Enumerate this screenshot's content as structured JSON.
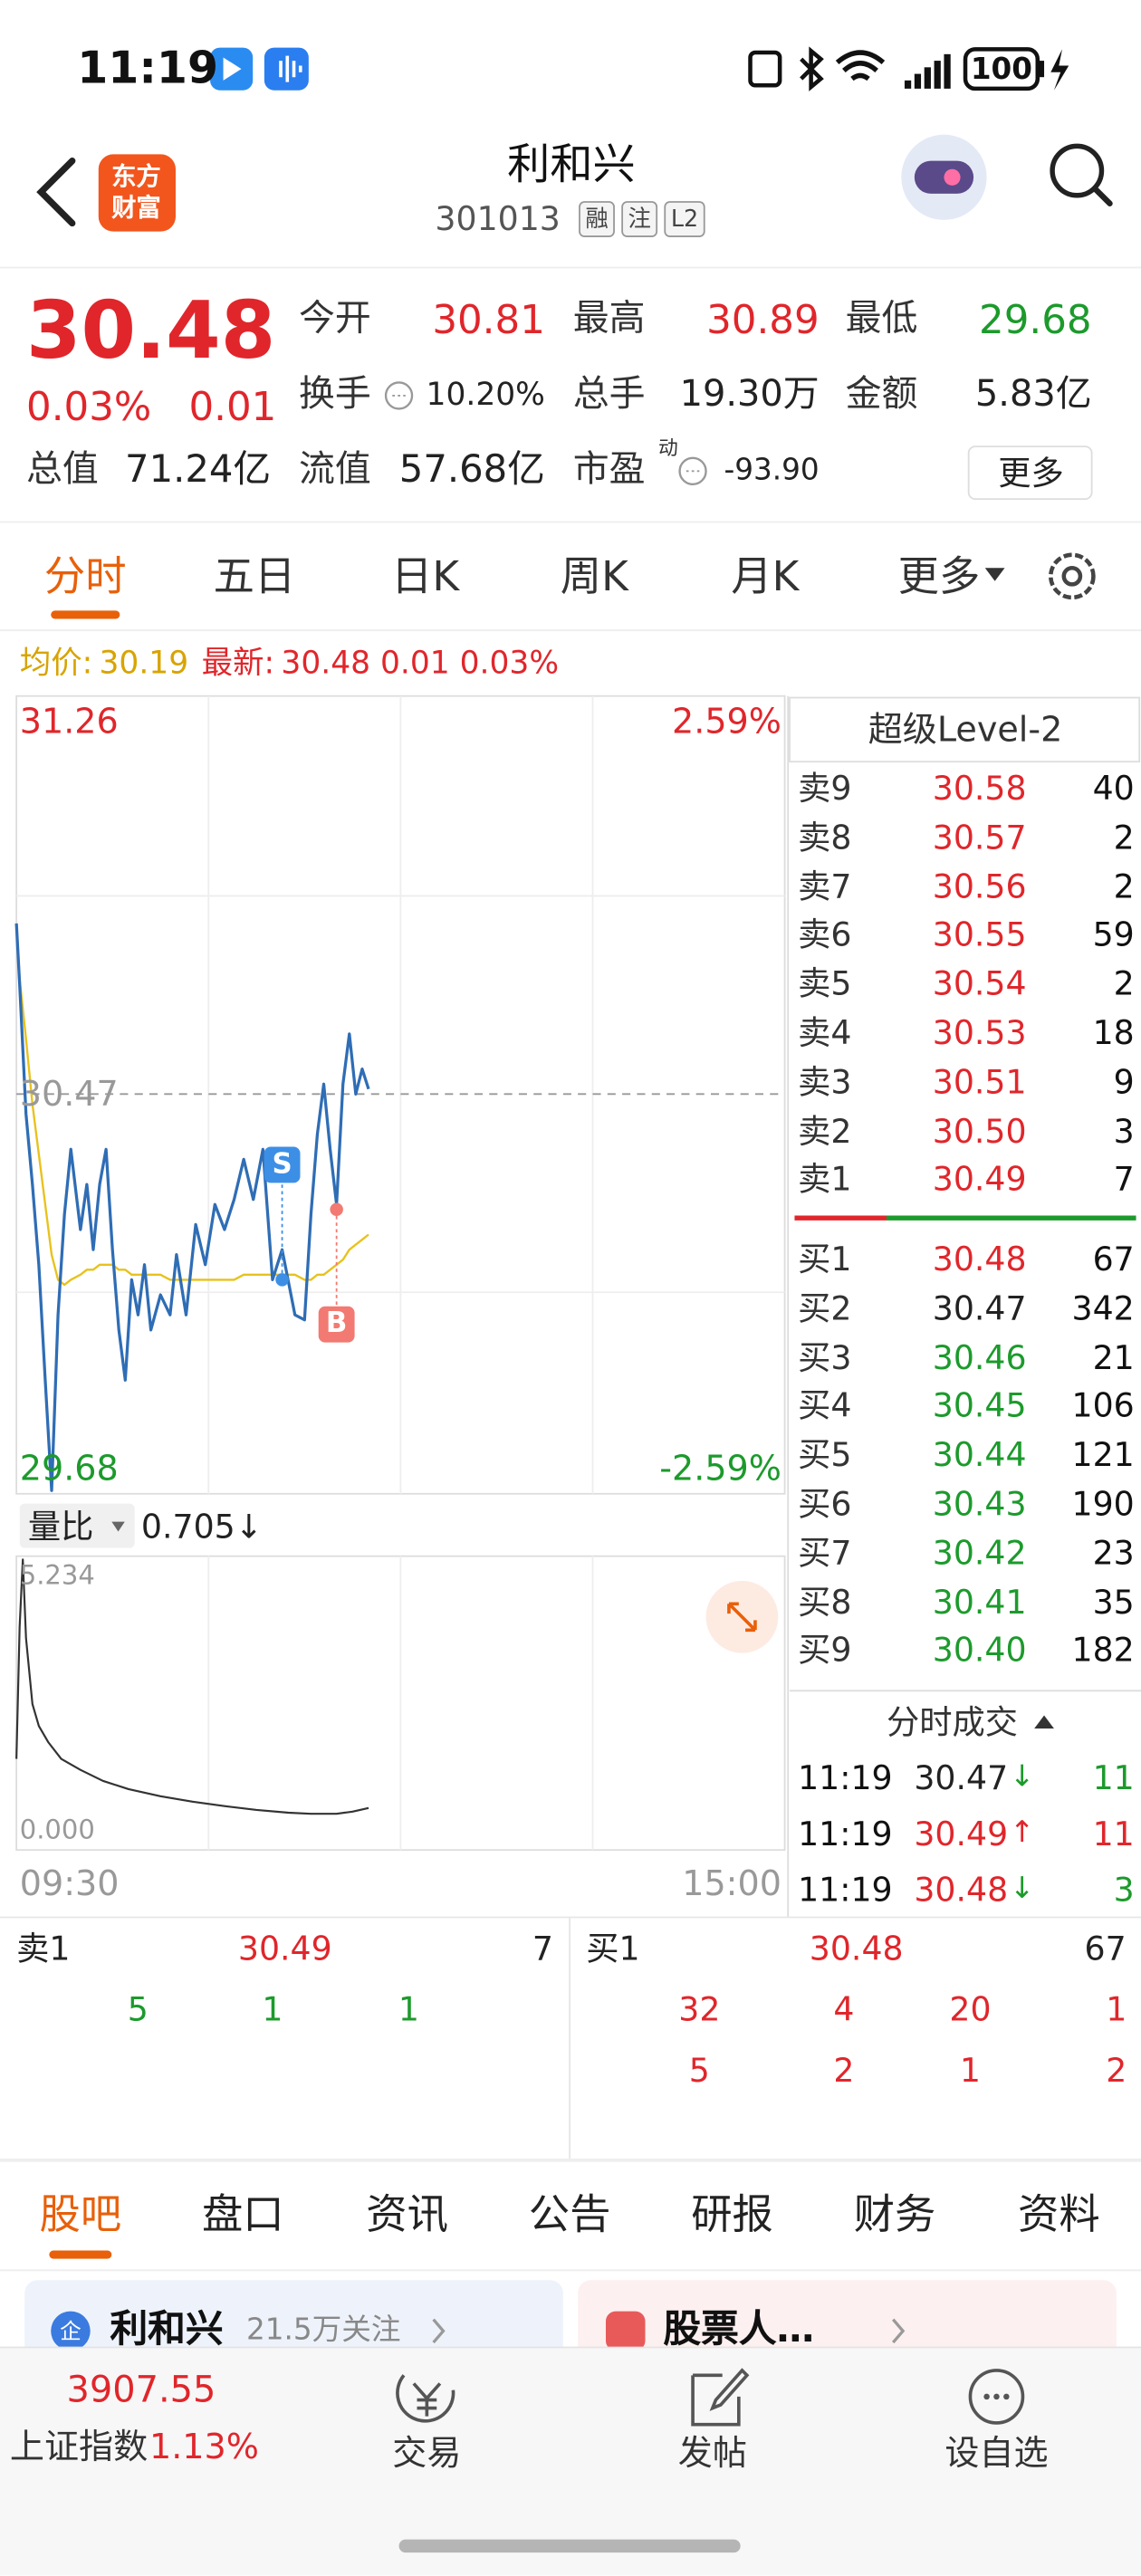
{
  "status_bar": {
    "time": "11:19",
    "battery": "100"
  },
  "header": {
    "logo_lines": [
      "东方",
      "财富"
    ],
    "title": "利和兴",
    "code": "301013",
    "badges": [
      "融",
      "注",
      "L2"
    ]
  },
  "quote": {
    "price": "30.48",
    "change_pct": "0.03%",
    "change": "0.01",
    "more": "更多",
    "fields": [
      {
        "label": "今开",
        "value": "30.81",
        "color": "#e0262b"
      },
      {
        "label": "最高",
        "value": "30.89",
        "color": "#e0262b"
      },
      {
        "label": "最低",
        "value": "29.68",
        "color": "#1c9a2c"
      },
      {
        "label": "换手",
        "value": "10.20%",
        "color": "#222222"
      },
      {
        "label": "总手",
        "value": "19.30万",
        "color": "#222222"
      },
      {
        "label": "金额",
        "value": "5.83亿",
        "color": "#222222"
      },
      {
        "label": "总值",
        "value": "71.24亿",
        "color": "#222222"
      },
      {
        "label": "流值",
        "value": "57.68亿",
        "color": "#222222"
      },
      {
        "label": "市盈",
        "superscript": "动",
        "value": "-93.90",
        "color": "#222222"
      }
    ]
  },
  "chart_tabs": {
    "items": [
      "分时",
      "五日",
      "日K",
      "周K",
      "月K",
      "更多"
    ],
    "active": 0
  },
  "chart_data": [
    {
      "type": "line",
      "x": [
        0,
        1,
        3,
        5,
        7,
        9,
        11,
        13,
        15,
        17,
        20,
        22,
        24,
        26,
        28,
        30,
        32,
        34,
        36,
        38,
        40,
        42,
        45,
        48,
        50,
        53,
        56,
        59,
        62,
        65,
        68,
        71,
        74,
        77,
        80,
        83,
        87,
        90,
        92,
        94,
        96,
        98,
        100,
        102,
        104,
        106,
        108,
        110
      ],
      "xlim": [
        0,
        240
      ],
      "xticks": [
        {
          "value": 0,
          "label": "09:30"
        },
        {
          "value": 240,
          "label": "15:00"
        }
      ],
      "ylim": [
        29.68,
        31.26
      ],
      "yticks": [
        31.26,
        30.47,
        29.68
      ],
      "y2lim": [
        -2.59,
        2.59
      ],
      "y2ticks": [
        {
          "value": 2.59,
          "label": "2.59%"
        },
        {
          "value": -2.59,
          "label": "-2.59%"
        }
      ],
      "series": [
        {
          "name": "最新:",
          "readout": "30.48 0.01 0.03%",
          "color": "#2f6db5",
          "values": [
            30.81,
            30.69,
            30.43,
            30.29,
            30.13,
            29.9,
            29.68,
            30.03,
            30.23,
            30.36,
            30.2,
            30.29,
            30.16,
            30.29,
            30.36,
            30.16,
            30.0,
            29.9,
            30.1,
            30.03,
            30.13,
            30.0,
            30.07,
            30.03,
            30.15,
            30.03,
            30.21,
            30.13,
            30.25,
            30.2,
            30.26,
            30.34,
            30.26,
            30.36,
            30.1,
            30.16,
            30.03,
            30.02,
            30.23,
            30.39,
            30.49,
            30.36,
            30.25,
            30.49,
            30.59,
            30.47,
            30.52,
            30.48
          ]
        },
        {
          "name": "均价:",
          "readout": "30.19",
          "color": "#e8c21c",
          "values": [
            30.81,
            30.7,
            30.58,
            30.45,
            30.35,
            30.25,
            30.15,
            30.1,
            30.09,
            30.1,
            30.11,
            30.12,
            30.12,
            30.13,
            30.13,
            30.13,
            30.12,
            30.12,
            30.11,
            30.11,
            30.11,
            30.11,
            30.11,
            30.1,
            30.1,
            30.1,
            30.1,
            30.1,
            30.1,
            30.1,
            30.1,
            30.11,
            30.11,
            30.11,
            30.11,
            30.11,
            30.11,
            30.1,
            30.1,
            30.11,
            30.11,
            30.12,
            30.13,
            30.14,
            30.16,
            30.17,
            30.18,
            30.19
          ]
        }
      ],
      "annotations": [
        {
          "text": "S",
          "x": 83,
          "y": 30.1,
          "color": "#3d8fe6"
        },
        {
          "text": "B",
          "x": 100,
          "y": 30.24,
          "color": "#f27a72"
        }
      ],
      "grid": true
    },
    {
      "type": "line",
      "title": "量比",
      "readout": "0.705↓",
      "x": [
        0,
        1,
        2,
        3,
        5,
        7,
        10,
        14,
        20,
        27,
        35,
        45,
        55,
        65,
        75,
        85,
        92,
        100,
        105,
        110
      ],
      "xlim": [
        0,
        240
      ],
      "ylim": [
        0,
        5.234
      ],
      "yticks": [
        {
          "value": 5.234,
          "label": "5.234"
        },
        {
          "value": 0,
          "label": "0.000"
        }
      ],
      "series": [
        {
          "color": "#333333",
          "values": [
            1.6,
            4.0,
            5.234,
            3.8,
            2.6,
            2.2,
            1.9,
            1.6,
            1.4,
            1.2,
            1.05,
            0.92,
            0.82,
            0.74,
            0.67,
            0.62,
            0.6,
            0.6,
            0.64,
            0.705
          ]
        }
      ]
    }
  ],
  "order_book": {
    "title": "超级Level-2",
    "asks": [
      {
        "label": "卖9",
        "price": "30.58",
        "volume": "40"
      },
      {
        "label": "卖8",
        "price": "30.57",
        "volume": "2"
      },
      {
        "label": "卖7",
        "price": "30.56",
        "volume": "2"
      },
      {
        "label": "卖6",
        "price": "30.55",
        "volume": "59"
      },
      {
        "label": "卖5",
        "price": "30.54",
        "volume": "2"
      },
      {
        "label": "卖4",
        "price": "30.53",
        "volume": "18"
      },
      {
        "label": "卖3",
        "price": "30.51",
        "volume": "9"
      },
      {
        "label": "卖2",
        "price": "30.50",
        "volume": "3"
      },
      {
        "label": "卖1",
        "price": "30.49",
        "volume": "7"
      }
    ],
    "bids": [
      {
        "label": "买1",
        "price": "30.48",
        "volume": "67"
      },
      {
        "label": "买2",
        "price": "30.47",
        "volume": "342"
      },
      {
        "label": "买3",
        "price": "30.46",
        "volume": "21"
      },
      {
        "label": "买4",
        "price": "30.45",
        "volume": "106"
      },
      {
        "label": "买5",
        "price": "30.44",
        "volume": "121"
      },
      {
        "label": "买6",
        "price": "30.43",
        "volume": "190"
      },
      {
        "label": "买7",
        "price": "30.42",
        "volume": "23"
      },
      {
        "label": "买8",
        "price": "30.41",
        "volume": "35"
      },
      {
        "label": "买9",
        "price": "30.40",
        "volume": "182"
      }
    ]
  },
  "trades": {
    "title": "分时成交",
    "rows": [
      {
        "time": "11:19",
        "price": "30.47",
        "arrow": "↓",
        "volume": "11"
      },
      {
        "time": "11:19",
        "price": "30.49",
        "arrow": "↑",
        "volume": "11"
      },
      {
        "time": "11:19",
        "price": "30.48",
        "arrow": "↓",
        "volume": "3"
      }
    ]
  },
  "queue": {
    "ask": {
      "label": "卖1",
      "price": "30.49",
      "volume": "7",
      "orders": [
        [
          "5",
          "1",
          "1"
        ]
      ]
    },
    "bid": {
      "label": "买1",
      "price": "30.48",
      "volume": "67",
      "orders": [
        [
          "32",
          "4",
          "20",
          "1"
        ],
        [
          "5",
          "2",
          "1",
          "2"
        ]
      ]
    }
  },
  "bottom_tabs": {
    "items": [
      "股吧",
      "盘口",
      "资讯",
      "公告",
      "研报",
      "财务",
      "资料"
    ],
    "active": 0
  },
  "cards": [
    {
      "badge": "企",
      "name": "利和兴",
      "followers": "21.5万关注"
    },
    {
      "name": "股票人…"
    }
  ],
  "bottom_nav": {
    "index_value": "3907.55",
    "index_name": "上证指数",
    "index_change": "1.13%",
    "items": [
      "交易",
      "发帖",
      "设自选"
    ]
  }
}
